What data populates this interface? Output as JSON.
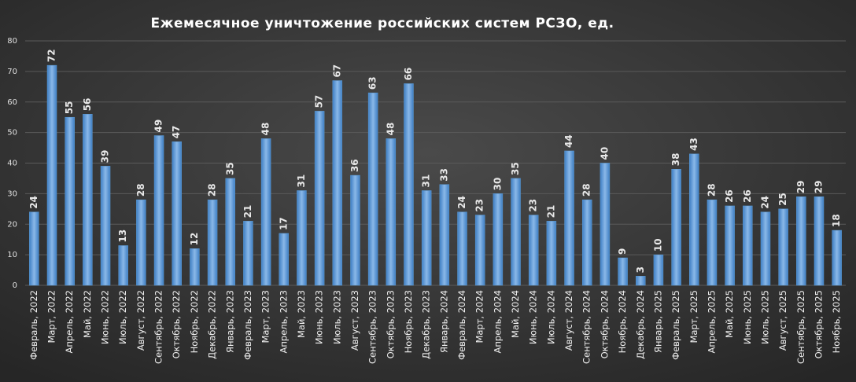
{
  "chart_data": {
    "type": "bar",
    "title": "Ежемесячное  уничтожение  российских  систем РСЗО,  ед.",
    "categories": [
      "Февраль, 2022",
      "Март, 2022",
      "Апрель, 2022",
      "Май, 2022",
      "Июнь, 2022",
      "Июль, 2022",
      "Август, 2022",
      "Сентябрь, 2022",
      "Октябрь, 2022",
      "Ноябрь, 2022",
      "Декабрь, 2022",
      "Январь, 2023",
      "Февраль, 2023",
      "Март, 2023",
      "Апрель, 2023",
      "Май, 2023",
      "Июнь, 2023",
      "Июль, 2023",
      "Август, 2023",
      "Сентябрь, 2023",
      "Октябрь, 2023",
      "Ноябрь, 2023",
      "Декабрь, 2023",
      "Январь, 2024",
      "Февраль, 2024",
      "Март, 2024",
      "Апрель, 2024",
      "Май, 2024",
      "Июнь, 2024",
      "Июль, 2024",
      "Август, 2024",
      "Сентябрь, 2024",
      "Октябрь, 2024",
      "Ноябрь, 2024",
      "Декабрь, 2024",
      "Январь, 2025",
      "Февраль, 2025",
      "Март, 2025",
      "Апрель, 2025",
      "Май, 2025",
      "Июнь, 2025",
      "Июль, 2025",
      "Август, 2025",
      "Сентябрь, 2025",
      "Октябрь, 2025",
      "Ноябрь, 2025"
    ],
    "values": [
      24,
      72,
      55,
      56,
      39,
      13,
      28,
      49,
      47,
      12,
      28,
      35,
      21,
      48,
      17,
      31,
      57,
      67,
      36,
      63,
      48,
      66,
      31,
      33,
      24,
      23,
      30,
      35,
      23,
      21,
      44,
      28,
      40,
      9,
      3,
      10,
      38,
      43,
      28,
      26,
      26,
      24,
      25,
      29,
      29,
      18
    ],
    "color": "#5b9bd5",
    "ylim": [
      0,
      80
    ],
    "yticks": [
      0,
      10,
      20,
      30,
      40,
      50,
      60,
      70,
      80
    ],
    "grid": true
  }
}
